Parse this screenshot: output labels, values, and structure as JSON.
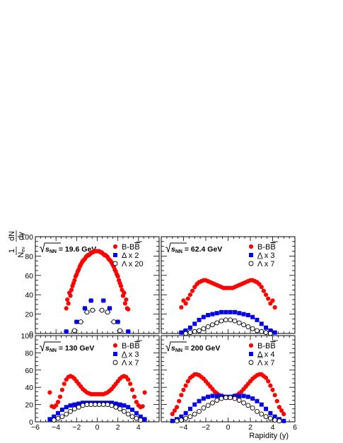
{
  "figure": {
    "y_title": {
      "num": "1",
      "frac_num": "dN",
      "frac_den_main": "N",
      "frac_den_sub": "ev",
      "frac_den_tail": "dy"
    },
    "x_title": "Rapidity (y)",
    "root_symbol": "√",
    "s_symbol": "s",
    "nn_sub": "NN"
  },
  "chart_data": [
    {
      "type": "scatter",
      "energy_value": "= 19.6 GeV",
      "xlim": [
        -6,
        6
      ],
      "ylim": [
        0,
        100
      ],
      "yticks": [
        "0",
        "20",
        "40",
        "60",
        "80",
        "100"
      ],
      "xticks": [],
      "legend": "top-right",
      "series": [
        {
          "name": "B-B̅",
          "label_main": "B-B",
          "label_over": "B",
          "marker": "circle",
          "color": "#ff0000",
          "filled": true,
          "x": [
            -3.0,
            -2.9,
            -2.8,
            -2.7,
            -2.6,
            -2.5,
            -2.4,
            -2.3,
            -2.2,
            -2.1,
            -2.0,
            -1.9,
            -1.8,
            -1.7,
            -1.6,
            -1.5,
            -1.4,
            -1.3,
            -1.2,
            -1.1,
            -1.0,
            -0.9,
            -0.8,
            -0.7,
            -0.6,
            -0.5,
            -0.4,
            -0.3,
            -0.2,
            -0.1,
            0.0,
            0.1,
            0.2,
            0.3,
            0.4,
            0.5,
            0.6,
            0.7,
            0.8,
            0.9,
            1.0,
            1.1,
            1.2,
            1.3,
            1.4,
            1.5,
            1.6,
            1.7,
            1.8,
            1.9,
            2.0,
            2.1,
            2.2,
            2.3,
            2.4,
            2.5,
            2.6,
            2.7,
            2.8,
            2.9,
            3.0
          ],
          "y": [
            26,
            35,
            31,
            42,
            39,
            45,
            49,
            52,
            55,
            59,
            61,
            64,
            66,
            69,
            71,
            73,
            75,
            76,
            77,
            79,
            80,
            81,
            81,
            82,
            83,
            84,
            84,
            85,
            85,
            85,
            85,
            85,
            85,
            84,
            84,
            83,
            82,
            81,
            81,
            80,
            79,
            77,
            76,
            75,
            73,
            71,
            69,
            66,
            64,
            61,
            59,
            55,
            52,
            49,
            45,
            39,
            42,
            31,
            35,
            26,
            25
          ]
        },
        {
          "name": "Δ x 2",
          "label": "Δ x 2",
          "marker": "square",
          "color": "#0000ee",
          "filled": true,
          "x": [
            -3.0,
            -2.0,
            -1.2,
            -0.6,
            0.6,
            1.2,
            2.0,
            3.0
          ],
          "y": [
            2,
            12,
            26,
            34,
            34,
            26,
            12,
            2
          ],
          "xerr": 0.25
        },
        {
          "name": "Λ x 20",
          "label": "Λ x 20",
          "marker": "circle",
          "color": "#000000",
          "filled": false,
          "x": [
            -2.2,
            -1.6,
            -1.0,
            -0.45,
            0.45,
            1.0,
            1.6,
            2.2
          ],
          "y": [
            3,
            12,
            22,
            24,
            24,
            22,
            12,
            3
          ],
          "xerr": 0.3
        }
      ]
    },
    {
      "type": "scatter",
      "energy_value": "= 62.4 GeV",
      "xlim": [
        -6,
        6
      ],
      "ylim": [
        0,
        100
      ],
      "yticks": [],
      "xticks": [],
      "legend": "top-right",
      "series": [
        {
          "name": "B-B̅",
          "label_main": "B-B",
          "label_over": "B",
          "marker": "circle",
          "color": "#ff0000",
          "filled": true,
          "x": [
            -4.2,
            -4.0,
            -3.8,
            -3.6,
            -3.4,
            -3.2,
            -3.0,
            -2.8,
            -2.6,
            -2.4,
            -2.2,
            -2.0,
            -1.8,
            -1.6,
            -1.4,
            -1.2,
            -1.0,
            -0.8,
            -0.6,
            -0.4,
            -0.2,
            0.0,
            0.2,
            0.4,
            0.6,
            0.8,
            1.0,
            1.2,
            1.4,
            1.6,
            1.8,
            2.0,
            2.2,
            2.4,
            2.6,
            2.8,
            3.0,
            3.2,
            3.4,
            3.6,
            3.8,
            4.0,
            4.2
          ],
          "y": [
            27,
            34,
            31,
            36,
            40,
            44,
            48,
            51,
            53,
            54,
            55,
            55,
            54,
            53,
            52,
            51,
            50,
            49,
            48,
            47,
            47,
            47,
            47,
            47,
            48,
            49,
            50,
            51,
            52,
            53,
            54,
            55,
            55,
            54,
            53,
            51,
            48,
            44,
            40,
            36,
            31,
            34,
            27
          ]
        },
        {
          "name": "Λ x 3",
          "label": "Λ x 3",
          "marker": "square",
          "color": "#0000ee",
          "filled": true,
          "x": [
            -4.2,
            -3.8,
            -3.4,
            -3.0,
            -2.6,
            -2.2,
            -1.8,
            -1.4,
            -1.0,
            -0.6,
            -0.2,
            0.2,
            0.6,
            1.0,
            1.4,
            1.8,
            2.2,
            2.6,
            3.0,
            3.4,
            3.8,
            4.2
          ],
          "y": [
            1,
            3,
            6,
            10,
            14,
            17,
            19,
            20,
            21,
            22,
            22,
            22,
            22,
            21,
            20,
            19,
            17,
            14,
            10,
            6,
            3,
            1
          ]
        },
        {
          "name": "Λ̅ x 7",
          "label_main": "Λ",
          "label_tail": " x 7",
          "marker": "circle",
          "color": "#000000",
          "filled": false,
          "x": [
            -3.8,
            -3.4,
            -3.0,
            -2.6,
            -2.2,
            -1.8,
            -1.4,
            -1.0,
            -0.6,
            -0.2,
            0.2,
            0.6,
            1.0,
            1.4,
            1.8,
            2.2,
            2.6,
            3.0,
            3.4,
            3.8
          ],
          "y": [
            0,
            1,
            2,
            3,
            5,
            7,
            9,
            11,
            13,
            14,
            14,
            13,
            11,
            9,
            7,
            5,
            3,
            2,
            1,
            0
          ]
        }
      ]
    },
    {
      "type": "scatter",
      "energy_value": "= 130 GeV",
      "xlim": [
        -6,
        6
      ],
      "ylim": [
        0,
        100
      ],
      "yticks": [
        "0",
        "20",
        "40",
        "60",
        "80",
        "100"
      ],
      "xticks": [
        "−6",
        "−4",
        "−2",
        "0",
        "2",
        "4"
      ],
      "legend": "top-right",
      "series": [
        {
          "name": "B-B̅",
          "label_main": "B-B",
          "label_over": "B",
          "marker": "circle",
          "color": "#ff0000",
          "filled": true,
          "x": [
            -4.6,
            -4.4,
            -4.2,
            -4.0,
            -3.8,
            -3.6,
            -3.4,
            -3.2,
            -3.0,
            -2.8,
            -2.6,
            -2.4,
            -2.2,
            -2.0,
            -1.8,
            -1.6,
            -1.4,
            -1.2,
            -1.0,
            -0.8,
            -0.6,
            -0.4,
            -0.2,
            0.0,
            0.2,
            0.4,
            0.6,
            0.8,
            1.0,
            1.2,
            1.4,
            1.6,
            1.8,
            2.0,
            2.2,
            2.4,
            2.6,
            2.8,
            3.0,
            3.2,
            3.4,
            3.6,
            3.8,
            4.0,
            4.2,
            4.4,
            4.6
          ],
          "y": [
            34,
            18,
            17,
            19,
            23,
            29,
            37,
            44,
            49,
            52,
            53,
            52,
            50,
            47,
            44,
            41,
            38,
            36,
            34,
            33,
            32,
            32,
            32,
            32,
            32,
            32,
            32,
            33,
            34,
            36,
            38,
            41,
            44,
            47,
            50,
            52,
            53,
            52,
            49,
            44,
            37,
            29,
            23,
            19,
            17,
            18,
            34
          ]
        },
        {
          "name": "Λ x 3",
          "label": "Λ x 3",
          "marker": "square",
          "color": "#0000ee",
          "filled": true,
          "x": [
            -4.6,
            -4.2,
            -3.8,
            -3.4,
            -3.0,
            -2.6,
            -2.2,
            -1.8,
            -1.4,
            -1.0,
            -0.6,
            -0.2,
            0.2,
            0.6,
            1.0,
            1.4,
            1.8,
            2.2,
            2.6,
            3.0,
            3.4,
            3.8,
            4.2,
            4.6
          ],
          "y": [
            3,
            6,
            10,
            14,
            17,
            19,
            20,
            21,
            22,
            22,
            22,
            22,
            22,
            22,
            22,
            22,
            21,
            20,
            19,
            17,
            14,
            10,
            6,
            3
          ]
        },
        {
          "name": "Λ̅ x 7",
          "label_main": "Λ",
          "label_tail": " x 7",
          "marker": "circle",
          "color": "#000000",
          "filled": false,
          "x": [
            -4.2,
            -3.8,
            -3.4,
            -3.0,
            -2.6,
            -2.2,
            -1.8,
            -1.4,
            -1.0,
            -0.6,
            -0.2,
            0.2,
            0.6,
            1.0,
            1.4,
            1.8,
            2.2,
            2.6,
            3.0,
            3.4,
            3.8,
            4.2
          ],
          "y": [
            2,
            4,
            6,
            9,
            12,
            15,
            17,
            19,
            20,
            20,
            20,
            20,
            20,
            20,
            19,
            17,
            15,
            12,
            9,
            6,
            4,
            2
          ]
        }
      ]
    },
    {
      "type": "scatter",
      "energy_value": "= 200 GeV",
      "xlim": [
        -6,
        6
      ],
      "ylim": [
        0,
        100
      ],
      "yticks": [],
      "xticks": [
        "−4",
        "−2",
        "0",
        "2",
        "4",
        "6"
      ],
      "legend": "top-right",
      "series": [
        {
          "name": "B-B̅",
          "label_main": "B-B",
          "label_over": "B",
          "marker": "circle",
          "color": "#ff0000",
          "filled": true,
          "x": [
            -5.0,
            -4.8,
            -4.6,
            -4.4,
            -4.2,
            -4.0,
            -3.8,
            -3.6,
            -3.4,
            -3.2,
            -3.0,
            -2.8,
            -2.6,
            -2.4,
            -2.2,
            -2.0,
            -1.8,
            -1.6,
            -1.4,
            -1.2,
            -1.0,
            -0.8,
            -0.6,
            -0.4,
            -0.2,
            0.0,
            0.2,
            0.4,
            0.6,
            0.8,
            1.0,
            1.2,
            1.4,
            1.6,
            1.8,
            2.0,
            2.2,
            2.4,
            2.6,
            2.8,
            3.0,
            3.2,
            3.4,
            3.6,
            3.8,
            4.0,
            4.2,
            4.4,
            4.6,
            4.8,
            5.0
          ],
          "y": [
            9,
            13,
            17,
            24,
            31,
            37,
            42,
            47,
            51,
            53,
            55,
            55,
            54,
            52,
            50,
            47,
            44,
            41,
            38,
            35,
            33,
            31,
            30,
            29,
            28,
            28,
            28,
            29,
            30,
            31,
            33,
            35,
            38,
            41,
            44,
            47,
            50,
            52,
            54,
            55,
            55,
            53,
            51,
            47,
            42,
            37,
            31,
            24,
            17,
            13,
            9
          ]
        },
        {
          "name": "Δ x 4",
          "label": "Δ x 4",
          "marker": "square",
          "color": "#0000ee",
          "filled": true,
          "x": [
            -5.0,
            -4.6,
            -4.2,
            -3.8,
            -3.4,
            -3.0,
            -2.6,
            -2.2,
            -1.8,
            -1.4,
            -1.0,
            -0.6,
            -0.2,
            0.2,
            0.6,
            1.0,
            1.4,
            1.8,
            2.2,
            2.6,
            3.0,
            3.4,
            3.8,
            4.2,
            4.6,
            5.0
          ],
          "y": [
            1,
            3,
            6,
            10,
            15,
            20,
            24,
            27,
            29,
            30,
            30,
            30,
            29,
            29,
            30,
            30,
            30,
            29,
            27,
            24,
            20,
            15,
            10,
            6,
            3,
            1
          ]
        },
        {
          "name": "Λ̅ x 7",
          "label_main": "Λ",
          "label_tail": " x 7",
          "marker": "circle",
          "color": "#000000",
          "filled": false,
          "x": [
            -4.6,
            -4.2,
            -3.8,
            -3.4,
            -3.0,
            -2.6,
            -2.2,
            -1.8,
            -1.4,
            -1.0,
            -0.6,
            -0.2,
            0.2,
            0.6,
            1.0,
            1.4,
            1.8,
            2.2,
            2.6,
            3.0,
            3.4,
            3.8,
            4.2,
            4.6
          ],
          "y": [
            1,
            2,
            4,
            6,
            9,
            12,
            16,
            19,
            22,
            25,
            27,
            28,
            28,
            27,
            25,
            22,
            19,
            16,
            12,
            9,
            6,
            4,
            2,
            1
          ]
        }
      ]
    }
  ]
}
